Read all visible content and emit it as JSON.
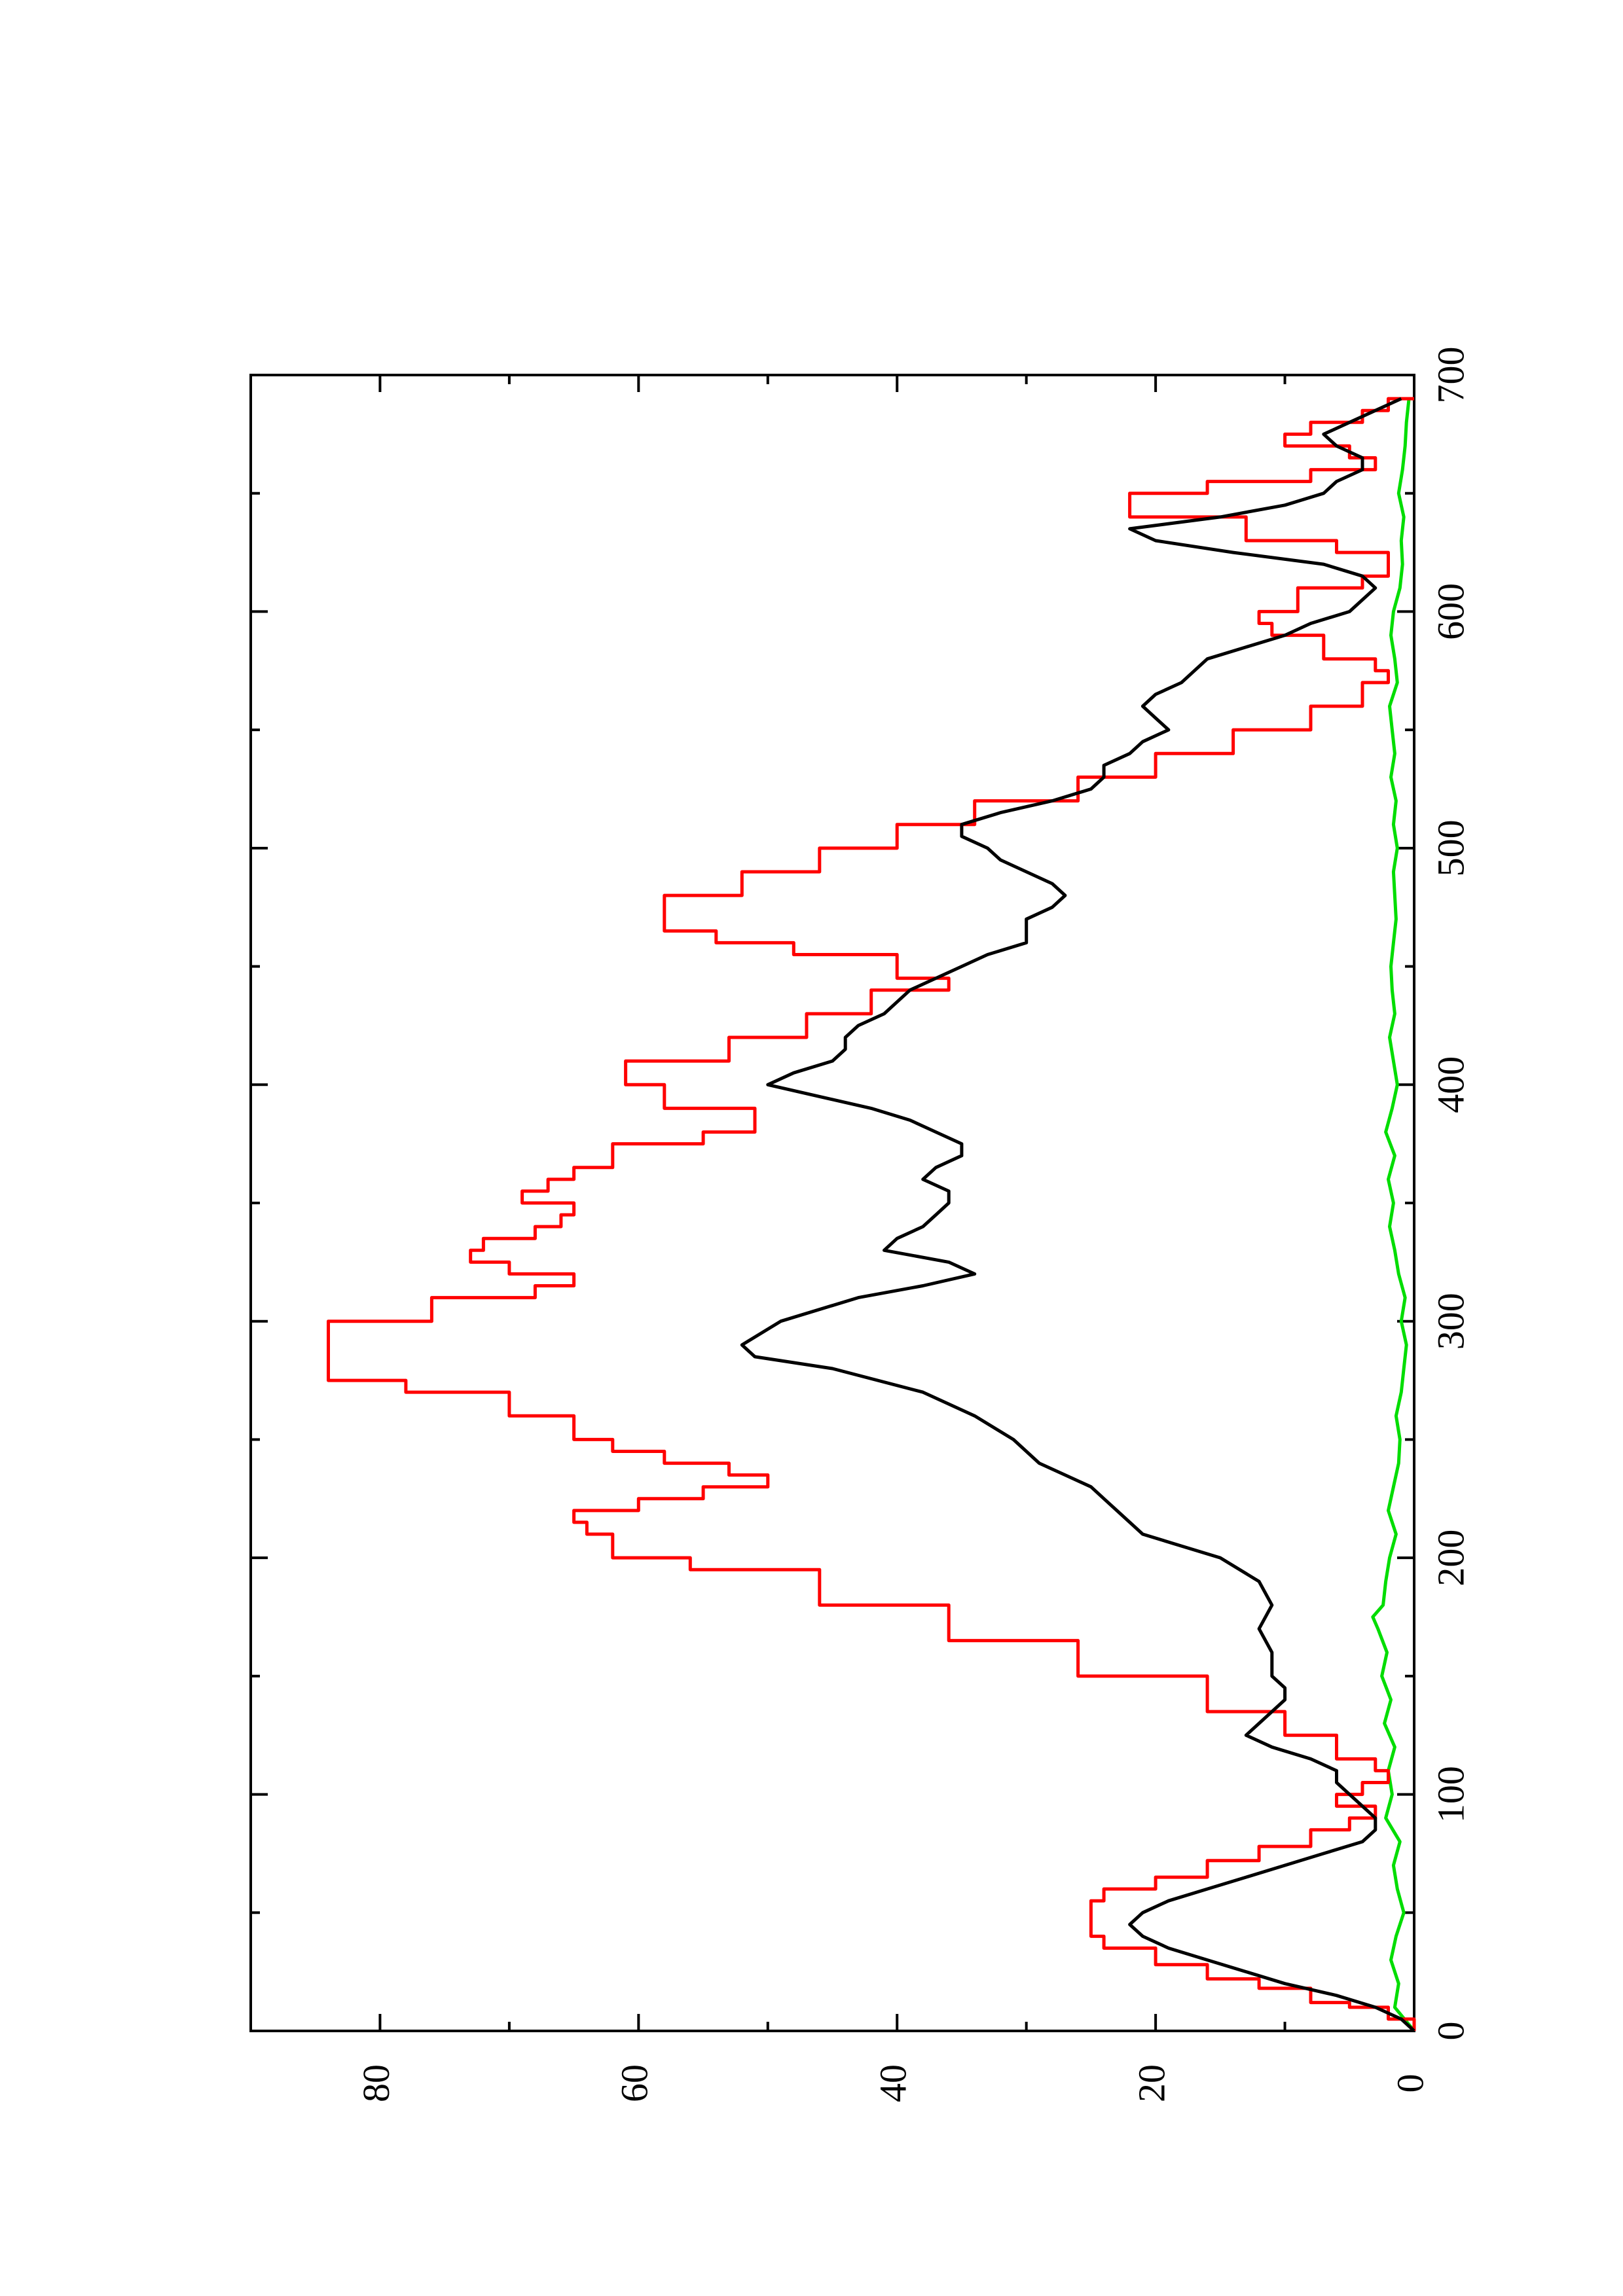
{
  "chart_data": {
    "type": "line",
    "title": "",
    "xlabel": "",
    "ylabel": "",
    "xlim": [
      0,
      700
    ],
    "ylim": [
      0,
      90
    ],
    "x_ticks": [
      0,
      100,
      200,
      300,
      400,
      500,
      600,
      700
    ],
    "x_tick_labels": [
      "0",
      "100",
      "200",
      "300",
      "400",
      "500",
      "600",
      "700"
    ],
    "x_minor_ticks": [
      50,
      150,
      250,
      350,
      450,
      550,
      650
    ],
    "y_ticks": [
      0,
      20,
      40,
      60,
      80
    ],
    "y_tick_labels": [
      "0",
      "20",
      "40",
      "60",
      "80"
    ],
    "y_minor_ticks": [
      10,
      30,
      50,
      70
    ],
    "orientation": "rotated 90 degrees counter-clockwise on the page",
    "grid": false,
    "legend": "none",
    "series": [
      {
        "color": "#ff0000",
        "style": "step",
        "x": [
          0,
          5,
          10,
          12,
          18,
          22,
          28,
          35,
          40,
          45,
          55,
          60,
          65,
          72,
          78,
          85,
          90,
          95,
          100,
          105,
          110,
          115,
          125,
          135,
          150,
          165,
          180,
          195,
          200,
          210,
          215,
          220,
          225,
          230,
          235,
          240,
          245,
          250,
          260,
          270,
          275,
          290,
          300,
          310,
          315,
          320,
          325,
          330,
          335,
          340,
          345,
          350,
          355,
          360,
          365,
          375,
          380,
          390,
          400,
          410,
          420,
          430,
          440,
          445,
          455,
          460,
          465,
          470,
          480,
          490,
          500,
          510,
          520,
          530,
          540,
          550,
          560,
          570,
          575,
          580,
          590,
          595,
          600,
          610,
          615,
          625,
          630,
          640,
          650,
          655,
          660,
          665,
          670,
          675,
          680,
          685,
          690
        ],
        "y": [
          0,
          2,
          5,
          8,
          12,
          16,
          20,
          24,
          25,
          25,
          24,
          20,
          16,
          12,
          8,
          5,
          3,
          6,
          4,
          2,
          3,
          6,
          10,
          16,
          26,
          36,
          46,
          56,
          62,
          64,
          65,
          60,
          55,
          50,
          53,
          58,
          62,
          65,
          70,
          78,
          84,
          84,
          76,
          68,
          65,
          70,
          73,
          72,
          68,
          66,
          65,
          69,
          67,
          65,
          62,
          55,
          51,
          58,
          61,
          53,
          47,
          42,
          36,
          40,
          48,
          54,
          58,
          58,
          52,
          46,
          40,
          34,
          26,
          20,
          14,
          8,
          4,
          2,
          3,
          7,
          11,
          12,
          9,
          4,
          2,
          6,
          13,
          22,
          16,
          8,
          3,
          5,
          10,
          8,
          4,
          2,
          0
        ]
      },
      {
        "color": "#000000",
        "style": "line",
        "x": [
          0,
          5,
          10,
          15,
          20,
          25,
          30,
          35,
          40,
          45,
          50,
          55,
          60,
          65,
          70,
          75,
          80,
          85,
          90,
          95,
          100,
          105,
          110,
          115,
          120,
          125,
          130,
          135,
          140,
          145,
          150,
          160,
          170,
          180,
          190,
          200,
          205,
          210,
          215,
          220,
          225,
          230,
          235,
          240,
          250,
          260,
          270,
          280,
          285,
          290,
          300,
          310,
          315,
          320,
          325,
          330,
          335,
          340,
          345,
          350,
          355,
          360,
          365,
          370,
          375,
          380,
          385,
          390,
          395,
          400,
          405,
          410,
          415,
          420,
          425,
          430,
          435,
          440,
          445,
          450,
          455,
          460,
          465,
          470,
          475,
          480,
          485,
          490,
          495,
          500,
          505,
          510,
          515,
          520,
          525,
          530,
          535,
          540,
          545,
          550,
          555,
          560,
          565,
          570,
          575,
          580,
          585,
          590,
          595,
          600,
          605,
          610,
          615,
          620,
          625,
          630,
          635,
          640,
          645,
          650,
          655,
          660,
          665,
          670,
          675,
          680,
          685,
          690
        ],
        "y": [
          0,
          1,
          3,
          6,
          10,
          13,
          16,
          19,
          21,
          22,
          21,
          19,
          16,
          13,
          10,
          7,
          4,
          3,
          3,
          4,
          5,
          6,
          6,
          8,
          11,
          13,
          12,
          11,
          10,
          10,
          11,
          11,
          12,
          11,
          12,
          15,
          18,
          21,
          22,
          23,
          24,
          25,
          27,
          29,
          31,
          34,
          38,
          45,
          51,
          52,
          49,
          43,
          38,
          34,
          36,
          41,
          40,
          38,
          37,
          36,
          36,
          38,
          37,
          35,
          35,
          37,
          39,
          42,
          46,
          50,
          48,
          45,
          44,
          44,
          43,
          41,
          40,
          39,
          37,
          35,
          33,
          30,
          30,
          30,
          28,
          27,
          28,
          30,
          32,
          33,
          35,
          35,
          32,
          28,
          25,
          24,
          24,
          22,
          21,
          19,
          20,
          21,
          20,
          18,
          17,
          16,
          13,
          10,
          8,
          5,
          4,
          3,
          4,
          7,
          14,
          20,
          22,
          15,
          10,
          7,
          6,
          4,
          4,
          6,
          7,
          5,
          3,
          1
        ]
      },
      {
        "color": "#00dd00",
        "style": "line",
        "x": [
          0,
          10,
          20,
          30,
          40,
          50,
          60,
          70,
          80,
          90,
          100,
          110,
          120,
          130,
          140,
          150,
          160,
          170,
          175,
          180,
          190,
          200,
          210,
          220,
          230,
          240,
          250,
          260,
          270,
          280,
          290,
          300,
          310,
          320,
          330,
          340,
          350,
          360,
          370,
          380,
          390,
          400,
          410,
          420,
          430,
          440,
          450,
          460,
          470,
          480,
          490,
          500,
          510,
          520,
          530,
          540,
          550,
          560,
          570,
          580,
          590,
          600,
          610,
          620,
          630,
          640,
          650,
          660,
          670,
          680,
          690
        ],
        "y": [
          0,
          1.5,
          1.2,
          1.8,
          1.4,
          0.8,
          1.3,
          1.6,
          1.1,
          2.2,
          1.7,
          2.0,
          1.5,
          2.3,
          1.8,
          2.5,
          2.1,
          2.8,
          3.2,
          2.4,
          2.2,
          1.9,
          1.4,
          2.0,
          1.6,
          1.2,
          1.1,
          1.4,
          1.0,
          0.8,
          0.6,
          1.0,
          0.7,
          1.2,
          1.5,
          1.9,
          1.6,
          2.0,
          1.5,
          2.2,
          1.7,
          1.3,
          1.6,
          1.9,
          1.5,
          1.7,
          1.8,
          1.6,
          1.4,
          1.5,
          1.6,
          1.3,
          1.6,
          1.4,
          1.8,
          1.5,
          1.7,
          1.9,
          1.3,
          1.5,
          1.8,
          1.6,
          1.1,
          0.9,
          1.0,
          0.8,
          1.2,
          0.9,
          0.7,
          0.6,
          0.4
        ]
      }
    ]
  }
}
